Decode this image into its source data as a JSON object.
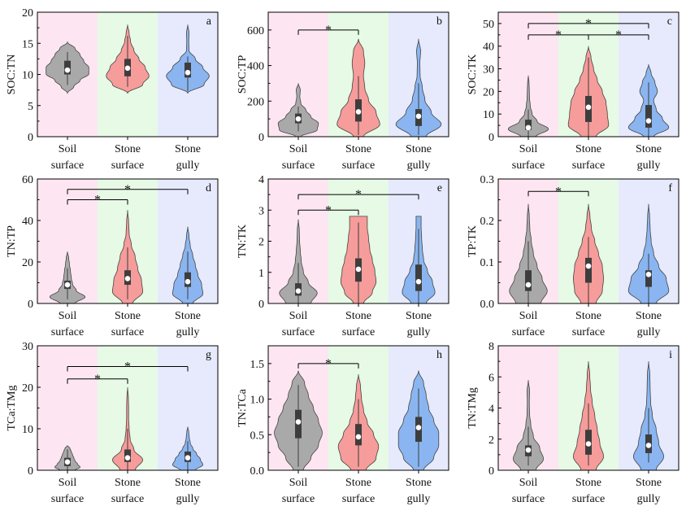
{
  "chart_data": {
    "type": "violin",
    "categories": [
      [
        "Soil",
        "surface"
      ],
      [
        "Stone",
        "surface"
      ],
      [
        "Stone",
        "gully"
      ]
    ],
    "colors": {
      "backgrounds": [
        "#fde6f1",
        "#e6fae6",
        "#e6eafc"
      ],
      "violins": [
        "#a9a9a9",
        "#f69c9a",
        "#8ab5f0"
      ],
      "box": "#3d3d3d",
      "median": "#ffffff"
    },
    "significance_mark": "*",
    "panels": [
      {
        "letter": "a",
        "ylabel": "SOC:TN",
        "ylim": [
          0,
          20
        ],
        "ticks": [
          "0",
          "5",
          "10",
          "15",
          "20"
        ],
        "minor": true,
        "groups": [
          {
            "min": 7,
            "max": 15.2,
            "density": [
              0,
              0.25,
              0.5,
              0.85,
              0.85,
              0.65,
              0.5,
              0.3,
              0
            ],
            "q1": 10,
            "q3": 12.2,
            "median": 10.7,
            "wlo": 8.3,
            "whi": 13.6
          },
          {
            "min": 7,
            "max": 18,
            "density": [
              0,
              0.6,
              0.85,
              0.7,
              0.45,
              0.25,
              0.12,
              0.06,
              0
            ],
            "q1": 9.7,
            "q3": 12.5,
            "median": 11,
            "wlo": 8,
            "whi": 16.2
          },
          {
            "min": 7,
            "max": 18,
            "density": [
              0,
              0.65,
              0.85,
              0.6,
              0.3,
              0.05,
              0.04,
              0.05,
              0
            ],
            "q1": 9.5,
            "q3": 11.9,
            "median": 10.3,
            "wlo": 7.3,
            "whi": 12.9
          }
        ],
        "brackets": []
      },
      {
        "letter": "b",
        "ylabel": "SOC:TP",
        "ylim": [
          0,
          700
        ],
        "ticks": [
          "0",
          "200",
          "400",
          "600"
        ],
        "minor": true,
        "groups": [
          {
            "min": 0,
            "max": 300,
            "density": [
              0.1,
              0.75,
              0.8,
              0.5,
              0.3,
              0.1,
              0.06,
              0.08,
              0
            ],
            "q1": 75,
            "q3": 130,
            "median": 100,
            "wlo": 30,
            "whi": 170
          },
          {
            "min": 0,
            "max": 550,
            "density": [
              0.2,
              0.85,
              0.7,
              0.4,
              0.25,
              0.2,
              0.25,
              0.2,
              0
            ],
            "q1": 85,
            "q3": 210,
            "median": 140,
            "wlo": 10,
            "whi": 340
          },
          {
            "min": 0,
            "max": 550,
            "density": [
              0.3,
              0.9,
              0.5,
              0.25,
              0.15,
              0.06,
              0.05,
              0.08,
              0
            ],
            "q1": 60,
            "q3": 155,
            "median": 115,
            "wlo": 10,
            "whi": 300
          }
        ],
        "brackets": [
          {
            "y": 600,
            "ticks": [
              0,
              1
            ],
            "stars": [
              0.5
            ]
          }
        ]
      },
      {
        "letter": "c",
        "ylabel": "SOC:TK",
        "ylim": [
          0,
          55
        ],
        "ticks": [
          "0",
          "10",
          "20",
          "30",
          "40",
          "50"
        ],
        "minor": true,
        "groups": [
          {
            "min": 0,
            "max": 27,
            "density": [
              0.3,
              0.8,
              0.35,
              0.15,
              0.08,
              0.05,
              0.04,
              0.03,
              0
            ],
            "q1": 3,
            "q3": 7.5,
            "median": 4,
            "wlo": 0,
            "whi": 12
          },
          {
            "min": 0,
            "max": 40,
            "density": [
              0.3,
              0.8,
              0.75,
              0.7,
              0.55,
              0.35,
              0.2,
              0.1,
              0
            ],
            "q1": 6.5,
            "q3": 18,
            "median": 13,
            "wlo": 0,
            "whi": 35
          },
          {
            "min": 0,
            "max": 32,
            "density": [
              0.2,
              0.8,
              0.55,
              0.3,
              0.2,
              0.35,
              0.25,
              0.1,
              0
            ],
            "q1": 4,
            "q3": 14,
            "median": 7,
            "wlo": 0,
            "whi": 24
          }
        ],
        "brackets": [
          {
            "y": 45,
            "ticks": [
              0,
              1,
              2
            ],
            "stars": [
              0.5,
              1.5
            ]
          },
          {
            "y": 50,
            "ticks": [
              0,
              2
            ],
            "stars": [
              1
            ]
          }
        ]
      },
      {
        "letter": "d",
        "ylabel": "TN:TP",
        "ylim": [
          0,
          60
        ],
        "ticks": [
          "0",
          "20",
          "40",
          "60"
        ],
        "minor": true,
        "groups": [
          {
            "min": 0,
            "max": 25,
            "density": [
              0.3,
              0.7,
              0.35,
              0.2,
              0.15,
              0.12,
              0.08,
              0.05,
              0
            ],
            "q1": 7,
            "q3": 11,
            "median": 9,
            "wlo": 2,
            "whi": 17
          },
          {
            "min": 0,
            "max": 45,
            "density": [
              0.2,
              0.6,
              0.55,
              0.4,
              0.3,
              0.15,
              0.06,
              0.04,
              0
            ],
            "q1": 9,
            "q3": 16,
            "median": 12,
            "wlo": 2,
            "whi": 27
          },
          {
            "min": 0,
            "max": 37,
            "density": [
              0.2,
              0.6,
              0.55,
              0.4,
              0.3,
              0.2,
              0.1,
              0.05,
              0
            ],
            "q1": 8,
            "q3": 15,
            "median": 10.5,
            "wlo": 2,
            "whi": 25
          }
        ],
        "brackets": [
          {
            "y": 50,
            "ticks": [
              0,
              1
            ],
            "stars": [
              0.5
            ]
          },
          {
            "y": 55,
            "ticks": [
              0,
              2
            ],
            "stars": [
              1
            ]
          }
        ]
      },
      {
        "letter": "e",
        "ylabel": "TN:TK",
        "ylim": [
          0,
          4
        ],
        "ticks": [
          "0",
          "1",
          "2",
          "3",
          "4"
        ],
        "minor": true,
        "groups": [
          {
            "min": 0,
            "max": 2.7,
            "density": [
              0.5,
              0.75,
              0.4,
              0.2,
              0.12,
              0.08,
              0.05,
              0.04,
              0
            ],
            "q1": 0.25,
            "q3": 0.65,
            "median": 0.4,
            "wlo": 0,
            "whi": 1.3
          },
          {
            "min": 0,
            "max": 2.8,
            "density": [
              0.2,
              0.55,
              0.7,
              0.65,
              0.55,
              0.45,
              0.4,
              0.35,
              0.35
            ],
            "q1": 0.7,
            "q3": 1.45,
            "median": 1.1,
            "wlo": 0,
            "whi": 2.6
          },
          {
            "min": 0,
            "max": 2.8,
            "density": [
              0.3,
              0.65,
              0.55,
              0.35,
              0.2,
              0.15,
              0.12,
              0.1,
              0.1
            ],
            "q1": 0.4,
            "q3": 1.25,
            "median": 0.7,
            "wlo": 0,
            "whi": 2.4
          }
        ],
        "brackets": [
          {
            "y": 3.0,
            "ticks": [
              0,
              1
            ],
            "stars": [
              0.5
            ]
          },
          {
            "y": 3.5,
            "ticks": [
              0,
              2
            ],
            "stars": [
              1
            ]
          }
        ]
      },
      {
        "letter": "f",
        "ylabel": "TP:TK",
        "ylim": [
          0,
          0.3
        ],
        "ticks": [
          "0.0",
          "0.1",
          "0.2",
          "0.3"
        ],
        "minor": true,
        "groups": [
          {
            "min": 0,
            "max": 0.24,
            "density": [
              0.5,
              0.75,
              0.55,
              0.35,
              0.2,
              0.12,
              0.06,
              0.04,
              0
            ],
            "q1": 0.03,
            "q3": 0.08,
            "median": 0.045,
            "wlo": 0,
            "whi": 0.15
          },
          {
            "min": 0,
            "max": 0.24,
            "density": [
              0.3,
              0.55,
              0.6,
              0.55,
              0.4,
              0.25,
              0.12,
              0.06,
              0
            ],
            "q1": 0.05,
            "q3": 0.11,
            "median": 0.09,
            "wlo": 0,
            "whi": 0.16
          },
          {
            "min": 0,
            "max": 0.24,
            "density": [
              0.3,
              0.8,
              0.7,
              0.4,
              0.2,
              0.1,
              0.06,
              0.04,
              0
            ],
            "q1": 0.04,
            "q3": 0.08,
            "median": 0.07,
            "wlo": 0,
            "whi": 0.12
          }
        ],
        "brackets": [
          {
            "y": 0.27,
            "ticks": [
              0,
              1
            ],
            "stars": [
              0.5
            ]
          }
        ]
      },
      {
        "letter": "g",
        "ylabel": "TCa:TMg",
        "ylim": [
          0,
          30
        ],
        "ticks": [
          "0",
          "10",
          "20",
          "30"
        ],
        "minor": true,
        "groups": [
          {
            "min": 0,
            "max": 6,
            "density": [
              0.3,
              0.5,
              0.4,
              0.3,
              0.25,
              0.2,
              0.15,
              0.1,
              0
            ],
            "q1": 1,
            "q3": 3,
            "median": 2,
            "wlo": 0,
            "whi": 5
          },
          {
            "min": 0,
            "max": 20,
            "density": [
              0.3,
              0.6,
              0.25,
              0.1,
              0.06,
              0.04,
              0.04,
              0.03,
              0
            ],
            "q1": 2,
            "q3": 5,
            "median": 3,
            "wlo": 0,
            "whi": 10
          },
          {
            "min": 0,
            "max": 10.5,
            "density": [
              0.3,
              0.6,
              0.5,
              0.35,
              0.2,
              0.1,
              0.06,
              0.04,
              0
            ],
            "q1": 2,
            "q3": 4.5,
            "median": 3,
            "wlo": 0,
            "whi": 7
          }
        ],
        "brackets": [
          {
            "y": 22,
            "ticks": [
              0,
              1
            ],
            "stars": [
              0.5
            ]
          },
          {
            "y": 25,
            "ticks": [
              0,
              2
            ],
            "stars": [
              1
            ]
          }
        ]
      },
      {
        "letter": "h",
        "ylabel": "TN:TCa",
        "ylim": [
          0,
          1.75
        ],
        "ticks": [
          "0.0",
          "0.5",
          "1.0",
          "1.5"
        ],
        "minor": true,
        "groups": [
          {
            "min": 0,
            "max": 1.4,
            "density": [
              0.2,
              0.5,
              0.8,
              0.95,
              0.8,
              0.6,
              0.4,
              0.25,
              0
            ],
            "q1": 0.45,
            "q3": 0.85,
            "median": 0.68,
            "wlo": 0.05,
            "whi": 1.2
          },
          {
            "min": 0,
            "max": 1.35,
            "density": [
              0.3,
              0.7,
              0.8,
              0.6,
              0.35,
              0.2,
              0.12,
              0.08,
              0
            ],
            "q1": 0.35,
            "q3": 0.65,
            "median": 0.47,
            "wlo": 0.05,
            "whi": 1.0
          },
          {
            "min": 0,
            "max": 1.4,
            "density": [
              0.2,
              0.6,
              0.8,
              0.8,
              0.6,
              0.4,
              0.3,
              0.2,
              0
            ],
            "q1": 0.4,
            "q3": 0.75,
            "median": 0.6,
            "wlo": 0.05,
            "whi": 1.15
          }
        ],
        "brackets": [
          {
            "y": 1.5,
            "ticks": [
              0,
              1
            ],
            "stars": [
              0.5
            ]
          }
        ]
      },
      {
        "letter": "i",
        "ylabel": "TN:TMg",
        "ylim": [
          0,
          8
        ],
        "ticks": [
          "0",
          "2",
          "4",
          "6",
          "8"
        ],
        "minor": true,
        "groups": [
          {
            "min": 0,
            "max": 5.8,
            "density": [
              0.3,
              0.6,
              0.45,
              0.2,
              0.1,
              0.05,
              0.04,
              0.05,
              0
            ],
            "q1": 0.9,
            "q3": 1.6,
            "median": 1.3,
            "wlo": 0.3,
            "whi": 2.8
          },
          {
            "min": 0,
            "max": 7,
            "density": [
              0.3,
              0.6,
              0.45,
              0.35,
              0.25,
              0.15,
              0.08,
              0.05,
              0
            ],
            "q1": 1,
            "q3": 2.6,
            "median": 1.7,
            "wlo": 0.3,
            "whi": 4.3
          },
          {
            "min": 0,
            "max": 7,
            "density": [
              0.3,
              0.6,
              0.4,
              0.3,
              0.15,
              0.08,
              0.06,
              0.05,
              0
            ],
            "q1": 1.1,
            "q3": 2.3,
            "median": 1.6,
            "wlo": 0.5,
            "whi": 4
          }
        ],
        "brackets": []
      }
    ]
  }
}
